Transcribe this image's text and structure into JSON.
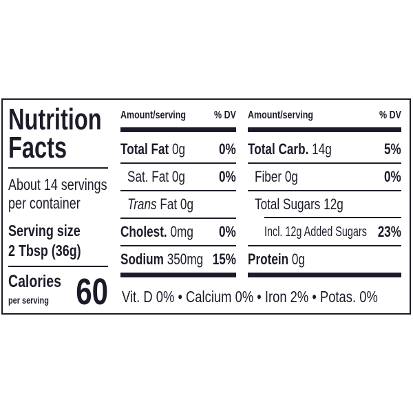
{
  "title": [
    "Nutrition",
    "Facts"
  ],
  "servings": [
    "About 14 servings",
    "per container"
  ],
  "serving_size": {
    "label": "Serving size",
    "value": "2 Tbsp (36g)"
  },
  "calories": {
    "label": "Calories",
    "sub": "per serving",
    "value": "60"
  },
  "header": {
    "amount": "Amount/serving",
    "dv": "% DV"
  },
  "left_rows": [
    {
      "name": "Total Fat",
      "amount": "0g",
      "dv": "0%"
    },
    {
      "name": "Sat. Fat 0g",
      "dv": "0%"
    },
    {
      "name_italic": "Trans",
      "name": "Fat 0g"
    },
    {
      "name": "Cholest.",
      "amount": "0mg",
      "dv": "0%"
    },
    {
      "name": "Sodium",
      "amount": "350mg",
      "dv": "15%"
    }
  ],
  "right_rows": [
    {
      "name": "Total Carb.",
      "amount": "14g",
      "dv": "5%"
    },
    {
      "name": "Fiber 0g",
      "dv": "0%"
    },
    {
      "name": "Total Sugars 12g"
    },
    {
      "name": "Incl. 12g Added Sugars",
      "dv": "23%"
    },
    {
      "name": "Protein",
      "amount": "0g"
    }
  ],
  "vitamins": "Vit. D 0% • Calcium 0% • Iron 2% • Potas. 0%"
}
